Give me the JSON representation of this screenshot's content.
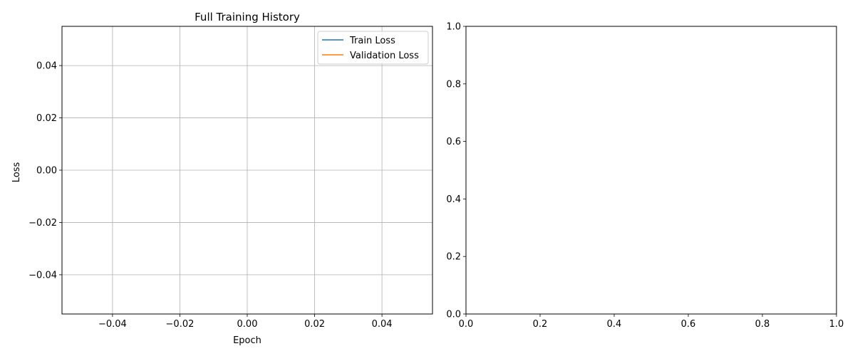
{
  "chart_data": [
    {
      "type": "line",
      "title": "Full Training History",
      "xlabel": "Epoch",
      "ylabel": "Loss",
      "xlim": [
        -0.055,
        0.055
      ],
      "ylim": [
        -0.055,
        0.055
      ],
      "xticks": [
        -0.04,
        -0.02,
        0.0,
        0.02,
        0.04
      ],
      "xtick_labels": [
        "−0.04",
        "−0.02",
        "0.00",
        "0.02",
        "0.04"
      ],
      "yticks": [
        -0.04,
        -0.02,
        0.0,
        0.02,
        0.04
      ],
      "ytick_labels": [
        "−0.04",
        "−0.02",
        "0.00",
        "0.02",
        "0.04"
      ],
      "grid": true,
      "legend_position": "top-right",
      "series": [
        {
          "name": "Train Loss",
          "color": "#1f77b4",
          "x": [],
          "y": []
        },
        {
          "name": "Validation Loss",
          "color": "#ff7f0e",
          "x": [],
          "y": []
        }
      ]
    },
    {
      "type": "line",
      "title": "",
      "xlabel": "",
      "ylabel": "",
      "xlim": [
        0,
        1
      ],
      "ylim": [
        0,
        1
      ],
      "xticks": [
        0,
        0.2,
        0.4,
        0.6,
        0.8,
        1.0
      ],
      "xtick_labels": [
        "0.0",
        "0.2",
        "0.4",
        "0.6",
        "0.8",
        "1.0"
      ],
      "yticks": [
        0,
        0.2,
        0.4,
        0.6,
        0.8,
        1.0
      ],
      "ytick_labels": [
        "0.0",
        "0.2",
        "0.4",
        "0.6",
        "0.8",
        "1.0"
      ],
      "grid": false,
      "series": []
    }
  ],
  "colors": {
    "grid": "#b0b0b0",
    "axes": "#000000",
    "legend_border": "#cccccc"
  }
}
